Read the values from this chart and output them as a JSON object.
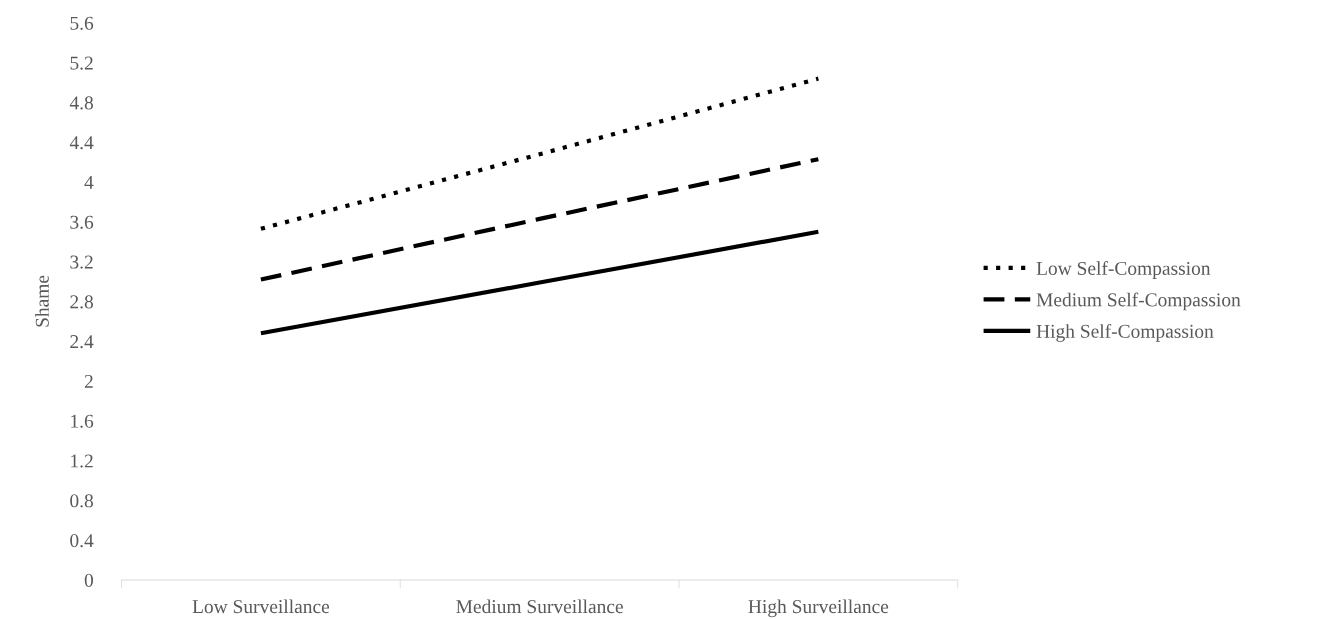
{
  "chart_data": {
    "type": "line",
    "ylabel": "Shame",
    "categories": [
      "Low Surveillance",
      "Medium Surveillance",
      "High Surveillance"
    ],
    "series": [
      {
        "name": "Low Self-Compassion",
        "color": "#000000",
        "line_style": "dotted",
        "values": [
          3.53,
          4.28,
          5.04
        ]
      },
      {
        "name": "Medium Self-Compassion",
        "color": "#000000",
        "line_style": "dashed",
        "values": [
          3.02,
          3.63,
          4.23
        ]
      },
      {
        "name": "High Self-Compassion",
        "color": "#000000",
        "line_style": "solid",
        "values": [
          2.48,
          2.99,
          3.5
        ]
      }
    ],
    "ylim": [
      0,
      5.6
    ],
    "yticks": [
      0,
      0.4,
      0.8,
      1.2,
      1.6,
      2,
      2.4,
      2.8,
      3.2,
      3.6,
      4,
      4.4,
      4.8,
      5.2,
      5.6
    ],
    "grid": false,
    "legend": "right",
    "marker": "none"
  }
}
